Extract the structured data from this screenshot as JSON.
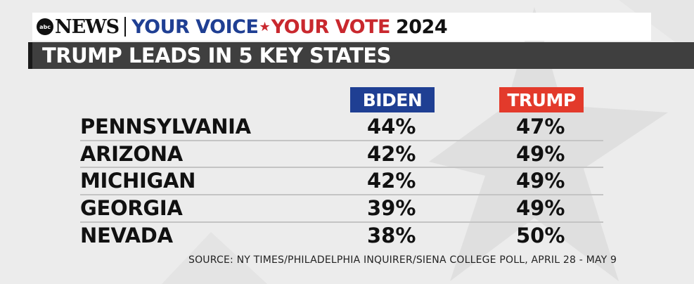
{
  "brand": {
    "network": "abc",
    "news_word": "NEWS",
    "tagline_part1": "YOUR VOICE",
    "tagline_part2": "YOUR VOTE",
    "year": "2024"
  },
  "headline": "TRUMP LEADS IN 5 KEY STATES",
  "columns": {
    "biden": "BIDEN",
    "trump": "TRUMP"
  },
  "rows": [
    {
      "state": "PENNSYLVANIA",
      "biden": "44%",
      "trump": "47%"
    },
    {
      "state": "ARIZONA",
      "biden": "42%",
      "trump": "49%"
    },
    {
      "state": "MICHIGAN",
      "biden": "42%",
      "trump": "49%"
    },
    {
      "state": "GEORGIA",
      "biden": "39%",
      "trump": "49%"
    },
    {
      "state": "NEVADA",
      "biden": "38%",
      "trump": "50%"
    }
  ],
  "source": "SOURCE: NY TIMES/PHILADELPHIA INQUIRER/SIENA COLLEGE POLL,  APRIL 28 - MAY 9",
  "colors": {
    "blue": "#1f3f93",
    "red": "#e33a2b",
    "bar": "#3f3f3f"
  }
}
